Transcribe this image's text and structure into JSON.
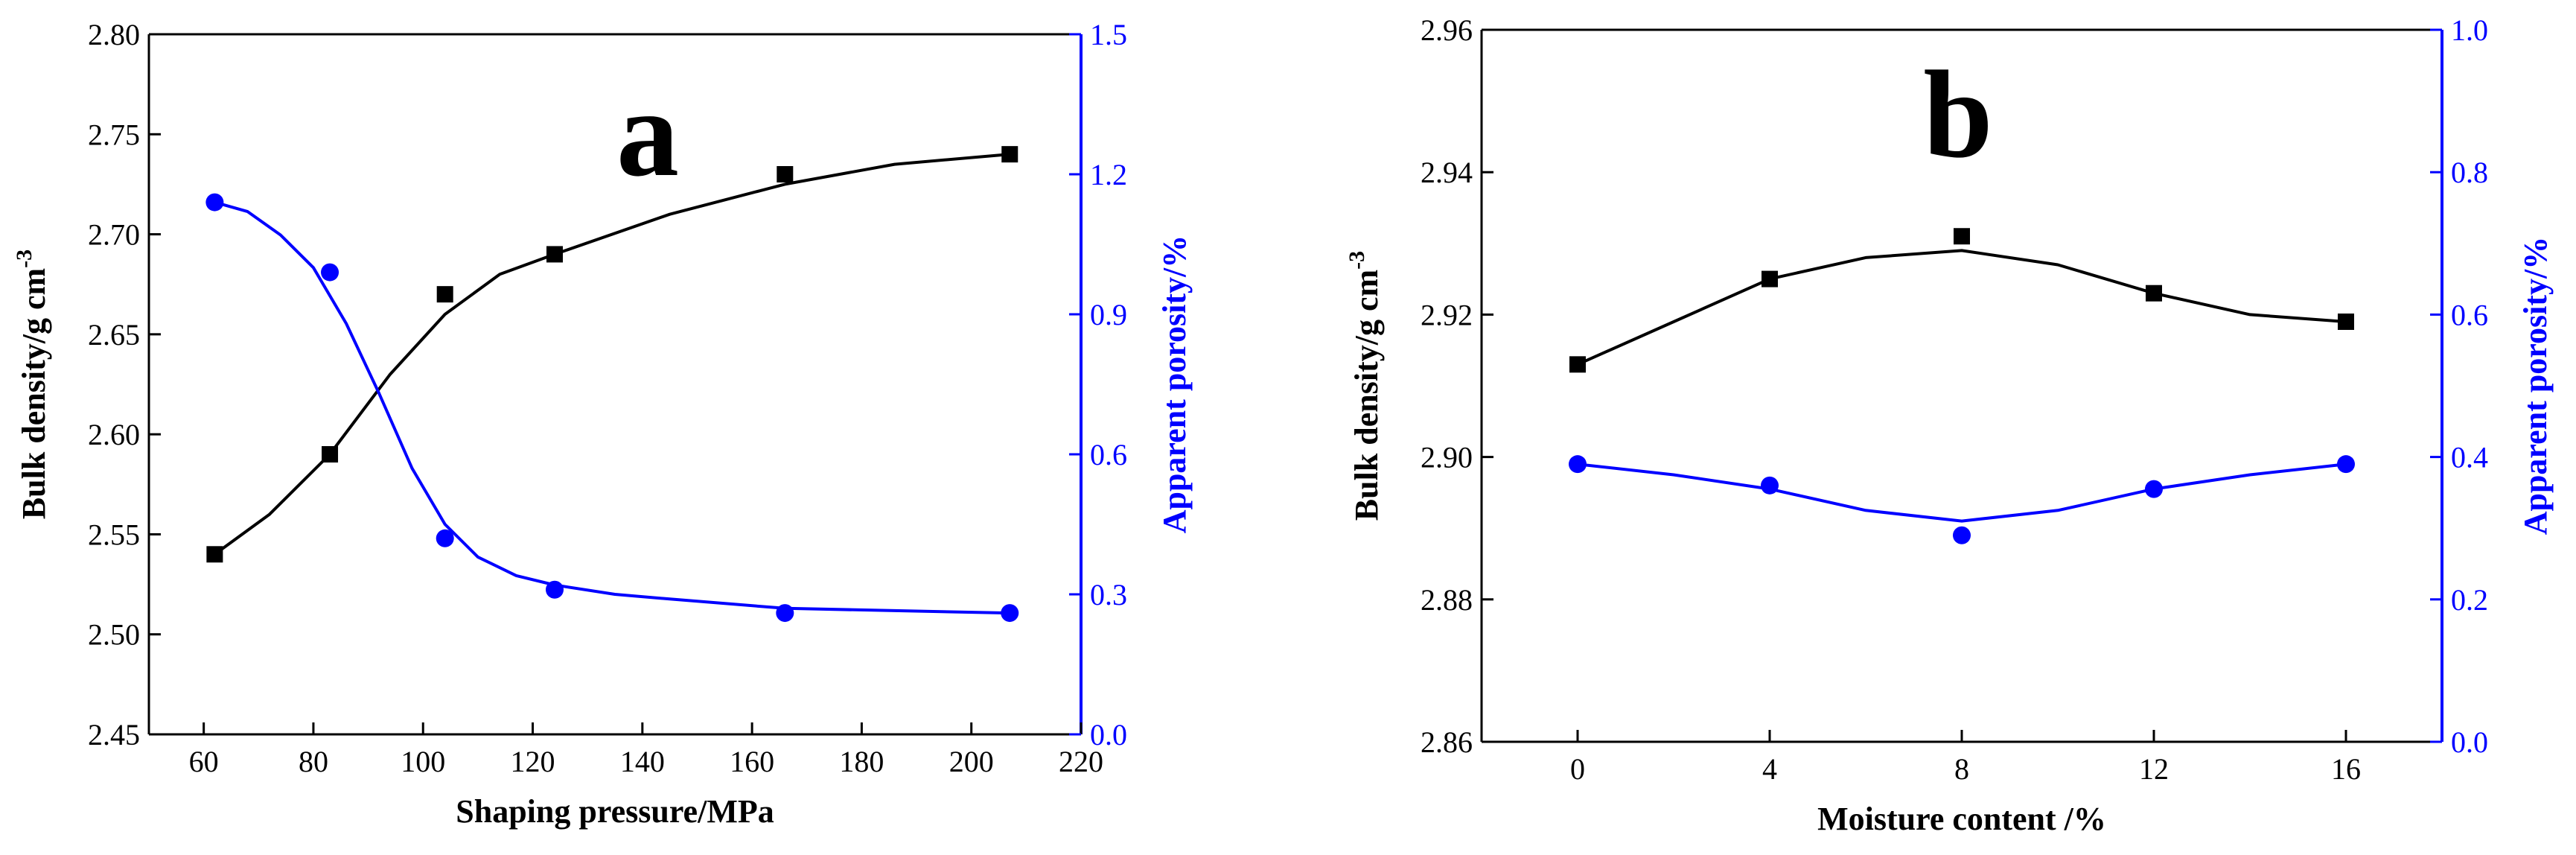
{
  "chart_data": [
    {
      "type": "line",
      "panel_label": "a",
      "xlabel": "Shaping pressure/MPa",
      "ylabel": "Bulk density/g cm",
      "ylabel_sup": "-3",
      "y2label": "Apparent porosity/%",
      "xlim": [
        50,
        220
      ],
      "ylim": [
        2.45,
        2.8
      ],
      "y2lim": [
        0,
        1.5
      ],
      "xticks": [
        60,
        80,
        100,
        120,
        140,
        160,
        180,
        200,
        220
      ],
      "yticks": [
        2.45,
        2.5,
        2.55,
        2.6,
        2.65,
        2.7,
        2.75,
        2.8
      ],
      "y2ticks": [
        0.0,
        0.3,
        0.6,
        0.9,
        1.2,
        1.5
      ],
      "xtick_labels": [
        "60",
        "80",
        "100",
        "120",
        "140",
        "160",
        "180",
        "200",
        "220"
      ],
      "ytick_labels": [
        "2.45",
        "2.50",
        "2.55",
        "2.60",
        "2.65",
        "2.70",
        "2.75",
        "2.80"
      ],
      "y2tick_labels": [
        "0.0",
        "0.3",
        "0.6",
        "0.9",
        "1.2",
        "1.5"
      ],
      "grid": false,
      "legend": false,
      "series": [
        {
          "axis": "left",
          "marker": "square",
          "color": "#000000",
          "x": [
            62,
            83,
            104,
            124,
            166,
            207
          ],
          "y": [
            2.54,
            2.59,
            2.67,
            2.69,
            2.73,
            2.74
          ],
          "fit_x": [
            62,
            72,
            83,
            94,
            104,
            114,
            124,
            145,
            166,
            186,
            207
          ],
          "fit_y": [
            2.54,
            2.56,
            2.59,
            2.63,
            2.66,
            2.68,
            2.69,
            2.71,
            2.725,
            2.735,
            2.74
          ]
        },
        {
          "axis": "right",
          "marker": "circle",
          "color": "#0000ff",
          "x": [
            62,
            83,
            104,
            124,
            166,
            207
          ],
          "y": [
            1.14,
            0.99,
            0.42,
            0.31,
            0.26,
            0.26
          ],
          "fit_x": [
            62,
            68,
            74,
            80,
            86,
            92,
            98,
            104,
            110,
            117,
            124,
            135,
            145,
            166,
            186,
            207
          ],
          "fit_y": [
            1.14,
            1.12,
            1.07,
            1.0,
            0.88,
            0.73,
            0.57,
            0.45,
            0.38,
            0.34,
            0.32,
            0.3,
            0.29,
            0.27,
            0.265,
            0.26
          ]
        }
      ]
    },
    {
      "type": "line",
      "panel_label": "b",
      "xlabel": "Moisture content /%",
      "ylabel": "Bulk density/g cm",
      "ylabel_sup": "-3",
      "y2label": "Apparent porosity/%",
      "xlim": [
        -2,
        18
      ],
      "ylim": [
        2.86,
        2.96
      ],
      "y2lim": [
        0,
        1.0
      ],
      "xticks": [
        0,
        4,
        8,
        12,
        16
      ],
      "yticks": [
        2.86,
        2.88,
        2.9,
        2.92,
        2.94,
        2.96
      ],
      "y2ticks": [
        0.0,
        0.2,
        0.4,
        0.6,
        0.8,
        1.0
      ],
      "xtick_labels": [
        "0",
        "4",
        "8",
        "12",
        "16"
      ],
      "ytick_labels": [
        "2.86",
        "2.88",
        "2.90",
        "2.92",
        "2.94",
        "2.96"
      ],
      "y2tick_labels": [
        "0.0",
        "0.2",
        "0.4",
        "0.6",
        "0.8",
        "1.0"
      ],
      "grid": false,
      "legend": false,
      "series": [
        {
          "axis": "left",
          "marker": "square",
          "color": "#000000",
          "x": [
            0,
            4,
            8,
            12,
            16
          ],
          "y": [
            2.913,
            2.925,
            2.931,
            2.923,
            2.919
          ],
          "fit_x": [
            0,
            2,
            4,
            6,
            8,
            10,
            12,
            14,
            16
          ],
          "fit_y": [
            2.913,
            2.919,
            2.925,
            2.928,
            2.929,
            2.927,
            2.923,
            2.92,
            2.919
          ]
        },
        {
          "axis": "right",
          "marker": "circle",
          "color": "#0000ff",
          "x": [
            0,
            4,
            8,
            12,
            16
          ],
          "y": [
            0.39,
            0.36,
            0.29,
            0.355,
            0.39
          ],
          "fit_x": [
            0,
            2,
            4,
            6,
            8,
            10,
            12,
            14,
            16
          ],
          "fit_y": [
            0.39,
            0.375,
            0.355,
            0.325,
            0.31,
            0.325,
            0.355,
            0.375,
            0.39
          ]
        }
      ]
    }
  ]
}
